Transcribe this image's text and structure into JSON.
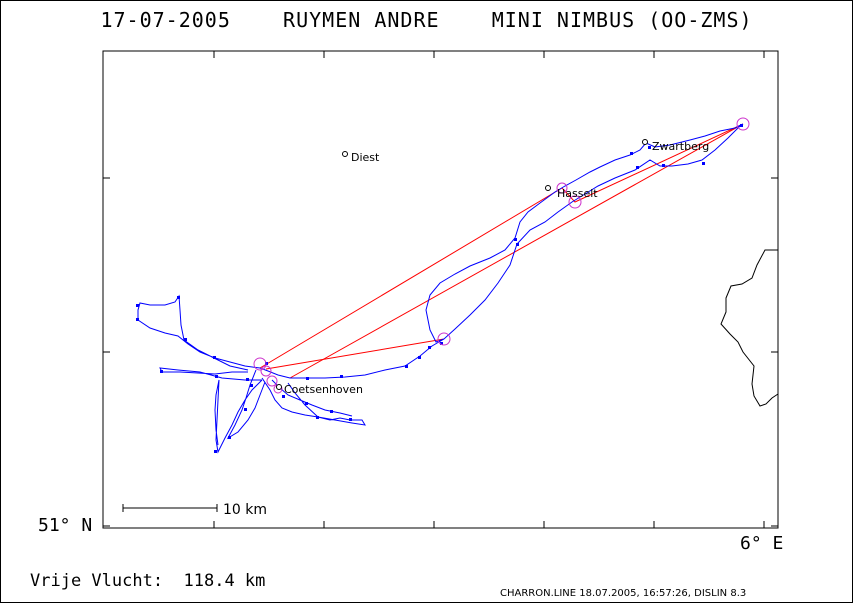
{
  "header": {
    "title": "17-07-2005    RUYMEN ANDRE    MINI NIMBUS (OO-ZMS)"
  },
  "axes": {
    "lat_label": "51° N",
    "lon_label": "6° E"
  },
  "places": [
    {
      "name": "Diest"
    },
    {
      "name": "Zwartberg"
    },
    {
      "name": "Hasselt"
    },
    {
      "name": "Coetsenhoven"
    }
  ],
  "scale": {
    "label": "10 km"
  },
  "footer": {
    "distance": "Vrije Vlucht:  118.4 km",
    "credit": "CHARRON.LINE 18.07.2005, 16:57:26, DISLIN 8.3"
  },
  "colors": {
    "track": "#0000ff",
    "task": "#ff0000",
    "turnpoint": "#cc33cc",
    "border": "#000000"
  }
}
